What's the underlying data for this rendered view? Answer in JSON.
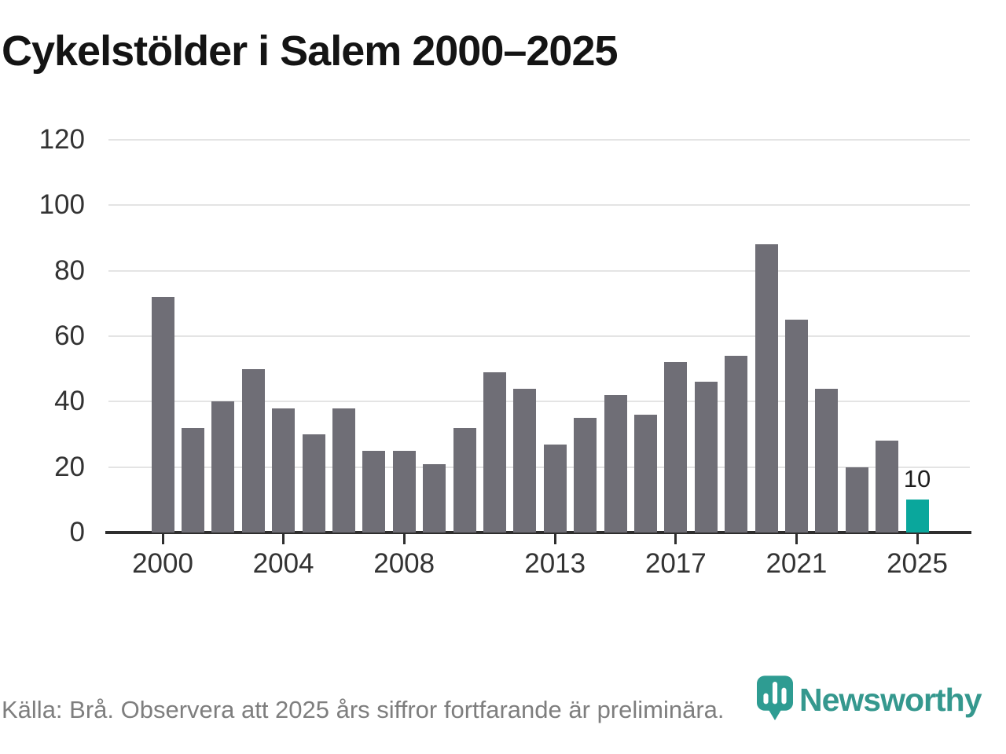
{
  "title": "Cykelstölder i Salem 2000–2025",
  "footer": {
    "source_note": "Källa: Brå. Observera att 2025 års siffror fortfarande är preliminära.",
    "brand_name": "Newsworthy"
  },
  "colors": {
    "bar": "#6f6e76",
    "highlight_bar": "#0aa79c",
    "brand_teal": "#35988e",
    "axis": "#2e2e2e",
    "gridline": "#e4e4e4",
    "axis_label": "#333333",
    "source_text": "#7e7e7e"
  },
  "chart_data": {
    "type": "bar",
    "title": "Cykelstölder i Salem 2000–2025",
    "xlabel": "",
    "ylabel": "",
    "x": [
      2000,
      2001,
      2002,
      2003,
      2004,
      2005,
      2006,
      2007,
      2008,
      2009,
      2010,
      2011,
      2012,
      2013,
      2014,
      2015,
      2016,
      2017,
      2018,
      2019,
      2020,
      2021,
      2022,
      2023,
      2024,
      2025
    ],
    "values": [
      72,
      32,
      40,
      50,
      38,
      30,
      38,
      25,
      25,
      21,
      32,
      49,
      44,
      27,
      35,
      42,
      36,
      52,
      46,
      54,
      88,
      65,
      44,
      20,
      28,
      10
    ],
    "highlight_year": 2025,
    "highlight_value_label": "10",
    "x_tick_years": [
      2000,
      2004,
      2008,
      2013,
      2017,
      2021,
      2025
    ],
    "x_tick_labels": [
      "2000",
      "2004",
      "2008",
      "2013",
      "2017",
      "2021",
      "2025"
    ],
    "y_ticks": [
      0,
      20,
      40,
      60,
      80,
      100,
      120
    ],
    "ylim": [
      0,
      120
    ],
    "grid": "horizontal",
    "legend": "none"
  }
}
